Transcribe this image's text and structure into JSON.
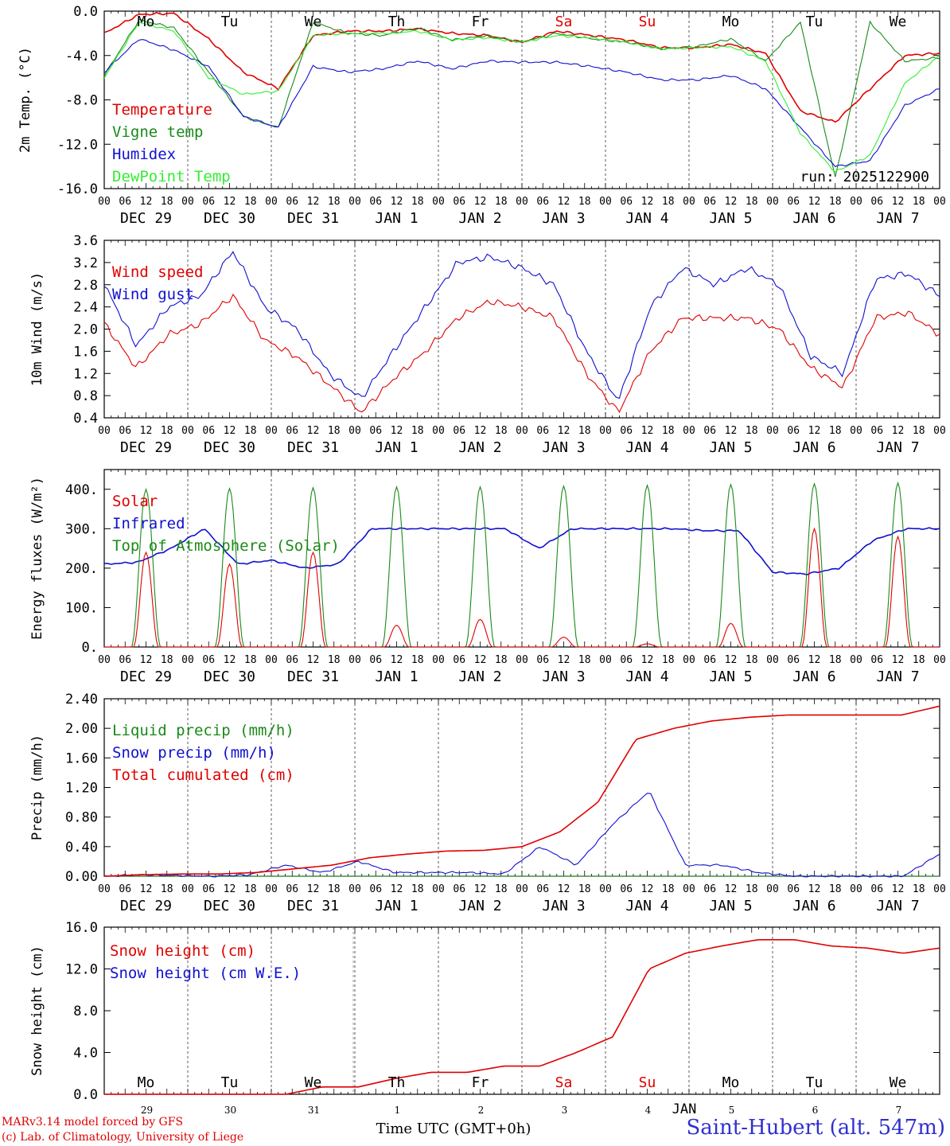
{
  "run_label": "run: 2025122900",
  "colors": {
    "red": "#e00000",
    "green": "#1a8a1a",
    "blue": "#1010d0",
    "lightgreen": "#33ee33",
    "weekend": "#e00000",
    "black": "#000000"
  },
  "hour_ticks": [
    "00",
    "06",
    "12",
    "18"
  ],
  "weekdays": [
    {
      "label": "Mo",
      "weekend": false
    },
    {
      "label": "Tu",
      "weekend": false
    },
    {
      "label": "We",
      "weekend": false
    },
    {
      "label": "Th",
      "weekend": false
    },
    {
      "label": "Fr",
      "weekend": false
    },
    {
      "label": "Sa",
      "weekend": true
    },
    {
      "label": "Su",
      "weekend": true
    },
    {
      "label": "Mo",
      "weekend": false
    },
    {
      "label": "Tu",
      "weekend": false
    },
    {
      "label": "We",
      "weekend": false
    }
  ],
  "dates": [
    "DEC 29",
    "DEC 30",
    "DEC 31",
    "JAN  1",
    "JAN  2",
    "JAN  3",
    "JAN  4",
    "JAN  5",
    "JAN  6",
    "JAN  7"
  ],
  "day_numbers": [
    "29",
    "30",
    "31",
    "1",
    "2",
    "3",
    "4",
    "5",
    "6",
    "7"
  ],
  "month_label": "JAN",
  "xlabel": "Time UTC (GMT+0h)",
  "credit_line1": "MARv3.14 model forced by GFS",
  "credit_line2": "(c) Lab. of Climatology, University of Liege",
  "station": "Saint-Hubert (alt. 547m)",
  "chart_data": [
    {
      "type": "line",
      "title": "Temperature",
      "ylabel": "2m Temp. (°C)",
      "ylim": [
        -16,
        0
      ],
      "yticks": [
        "0.0",
        "-4.0",
        "-8.0",
        "-12.0",
        "-16.0"
      ],
      "ytick_values": [
        0,
        -4,
        -8,
        -12,
        -16
      ],
      "x_hours_knots": [
        0,
        12,
        24,
        36,
        48,
        60,
        72,
        84,
        96,
        108,
        120,
        132,
        144,
        156,
        168,
        180,
        192,
        204,
        216,
        228,
        240
      ],
      "series": [
        {
          "name": "Temperature",
          "color": "red",
          "values": [
            -2.0,
            -0.3,
            -0.2,
            -2.5,
            -5.5,
            -7.0,
            -2.2,
            -1.8,
            -1.8,
            -1.6,
            -2.0,
            -2.2,
            -2.8,
            -1.8,
            -2.2,
            -2.6,
            -3.3,
            -3.3,
            -3.0,
            -3.8,
            -9.0,
            -10.0,
            -7.0,
            -4.0,
            -3.8
          ]
        },
        {
          "name": "Vigne temp",
          "color": "green",
          "values": [
            -5.8,
            -0.8,
            -1.5,
            -5.5,
            -9.5,
            -10.5,
            -1.0,
            -2.0,
            -2.2,
            -1.5,
            -2.6,
            -2.2,
            -2.8,
            -2.0,
            -2.5,
            -2.8,
            -3.4,
            -3.2,
            -2.5,
            -4.5,
            -1.0,
            -15.0,
            -1.0,
            -4.5,
            -4.2
          ]
        },
        {
          "name": "Humidex",
          "color": "blue",
          "values": [
            -5.5,
            -2.5,
            -3.5,
            -5.0,
            -9.5,
            -10.5,
            -5.0,
            -5.5,
            -5.2,
            -4.5,
            -5.2,
            -4.5,
            -4.6,
            -4.6,
            -5.0,
            -5.5,
            -6.2,
            -6.2,
            -5.8,
            -7.0,
            -10.5,
            -14.0,
            -13.5,
            -8.5,
            -7.0
          ]
        },
        {
          "name": "DewPoint Temp",
          "color": "lightgreen",
          "values": [
            -6.0,
            -1.0,
            -1.8,
            -6.0,
            -7.5,
            -7.2,
            -2.2,
            -2.0,
            -2.0,
            -1.8,
            -2.6,
            -2.4,
            -2.8,
            -2.2,
            -2.4,
            -2.8,
            -3.4,
            -3.3,
            -3.2,
            -4.5,
            -11.0,
            -14.5,
            -13.0,
            -6.5,
            -4.0
          ]
        }
      ]
    },
    {
      "type": "line",
      "title": "Wind",
      "ylabel": "10m Wind (m/s)",
      "ylim": [
        0.4,
        3.6
      ],
      "yticks": [
        "3.6",
        "3.2",
        "2.8",
        "2.4",
        "2.0",
        "1.6",
        "1.2",
        "0.8",
        "0.4"
      ],
      "ytick_values": [
        3.6,
        3.2,
        2.8,
        2.4,
        2.0,
        1.6,
        1.2,
        0.8,
        0.4
      ],
      "series": [
        {
          "name": "Wind speed",
          "color": "red",
          "values": [
            2.1,
            1.3,
            1.9,
            2.1,
            2.6,
            1.8,
            1.5,
            1.0,
            0.5,
            1.1,
            1.6,
            2.2,
            2.5,
            2.4,
            2.2,
            1.2,
            0.5,
            1.6,
            2.2,
            2.2,
            2.2,
            2.0,
            1.3,
            0.95,
            2.2,
            2.3,
            1.9
          ]
        },
        {
          "name": "Wind gust",
          "color": "blue",
          "values": [
            2.8,
            1.7,
            2.4,
            2.6,
            3.4,
            2.4,
            2.0,
            1.2,
            0.75,
            1.6,
            2.4,
            3.2,
            3.3,
            3.1,
            2.8,
            1.6,
            0.7,
            2.4,
            3.1,
            2.8,
            3.1,
            2.8,
            1.5,
            1.2,
            2.9,
            3.0,
            2.6
          ]
        }
      ]
    },
    {
      "type": "line",
      "title": "Energy fluxes",
      "ylabel": "Energy fluxes (W/m²)",
      "ylim": [
        0,
        450
      ],
      "yticks": [
        "400.",
        "300.",
        "200.",
        "100.",
        "0."
      ],
      "ytick_values": [
        400,
        300,
        200,
        100,
        0
      ],
      "series": [
        {
          "name": "Solar",
          "color": "red",
          "daily_peaks": [
            240,
            210,
            240,
            55,
            70,
            25,
            8,
            60,
            300,
            280
          ]
        },
        {
          "name": "Infrared",
          "color": "blue",
          "values": [
            210,
            215,
            250,
            300,
            210,
            220,
            200,
            210,
            300,
            300,
            300,
            300,
            300,
            250,
            300,
            300,
            300,
            300,
            295,
            295,
            190,
            185,
            200,
            270,
            300,
            300
          ]
        },
        {
          "name": "Top of Atmosphere (Solar)",
          "color": "green",
          "daily_peaks": [
            400,
            402,
            404,
            406,
            406,
            408,
            410,
            412,
            414,
            416
          ]
        }
      ]
    },
    {
      "type": "line",
      "title": "Precip",
      "ylabel": "Precip (mm/h)",
      "ylim": [
        0,
        2.4
      ],
      "yticks": [
        "2.40",
        "2.00",
        "1.60",
        "1.20",
        "0.80",
        "0.40",
        "0.00"
      ],
      "ytick_values": [
        2.4,
        2.0,
        1.6,
        1.2,
        0.8,
        0.4,
        0.0
      ],
      "series": [
        {
          "name": "Liquid precip (mm/h)",
          "color": "green",
          "values": [
            0,
            0,
            0,
            0,
            0,
            0,
            0,
            0,
            0,
            0,
            0,
            0,
            0,
            0,
            0,
            0,
            0,
            0,
            0,
            0,
            0
          ]
        },
        {
          "name": "Snow precip (mm/h)",
          "color": "blue",
          "values": [
            0,
            0.02,
            0.01,
            0.0,
            0.02,
            0.15,
            0.05,
            0.2,
            0.05,
            0.05,
            0.05,
            0.03,
            0.4,
            0.15,
            0.7,
            1.15,
            0.15,
            0.15,
            0.05,
            0.0,
            0.0,
            0.0,
            0.0,
            0.3
          ]
        },
        {
          "name": "Total cumulated (cm)",
          "color": "red",
          "values": [
            0,
            0.02,
            0.03,
            0.03,
            0.05,
            0.1,
            0.15,
            0.25,
            0.3,
            0.34,
            0.35,
            0.4,
            0.6,
            1.0,
            1.85,
            2.0,
            2.1,
            2.15,
            2.18,
            2.18,
            2.18,
            2.18,
            2.3
          ]
        }
      ]
    },
    {
      "type": "line",
      "title": "Snow height",
      "ylabel": "Snow height (cm)",
      "ylim": [
        0,
        16
      ],
      "yticks": [
        "16.0",
        "12.0",
        "8.0",
        "4.0",
        "0.0"
      ],
      "ytick_values": [
        16,
        12,
        8,
        4,
        0
      ],
      "series": [
        {
          "name": "Snow height (cm)",
          "color": "red",
          "values": [
            0,
            0,
            0,
            0,
            0,
            0,
            0.7,
            0.7,
            1.5,
            2.1,
            2.1,
            2.7,
            2.7,
            4.0,
            5.5,
            12.0,
            13.5,
            14.2,
            14.8,
            14.8,
            14.2,
            14.0,
            13.5,
            14.0
          ]
        },
        {
          "name": "Snow height (cm W.E.)",
          "color": "blue",
          "values": []
        }
      ]
    }
  ]
}
